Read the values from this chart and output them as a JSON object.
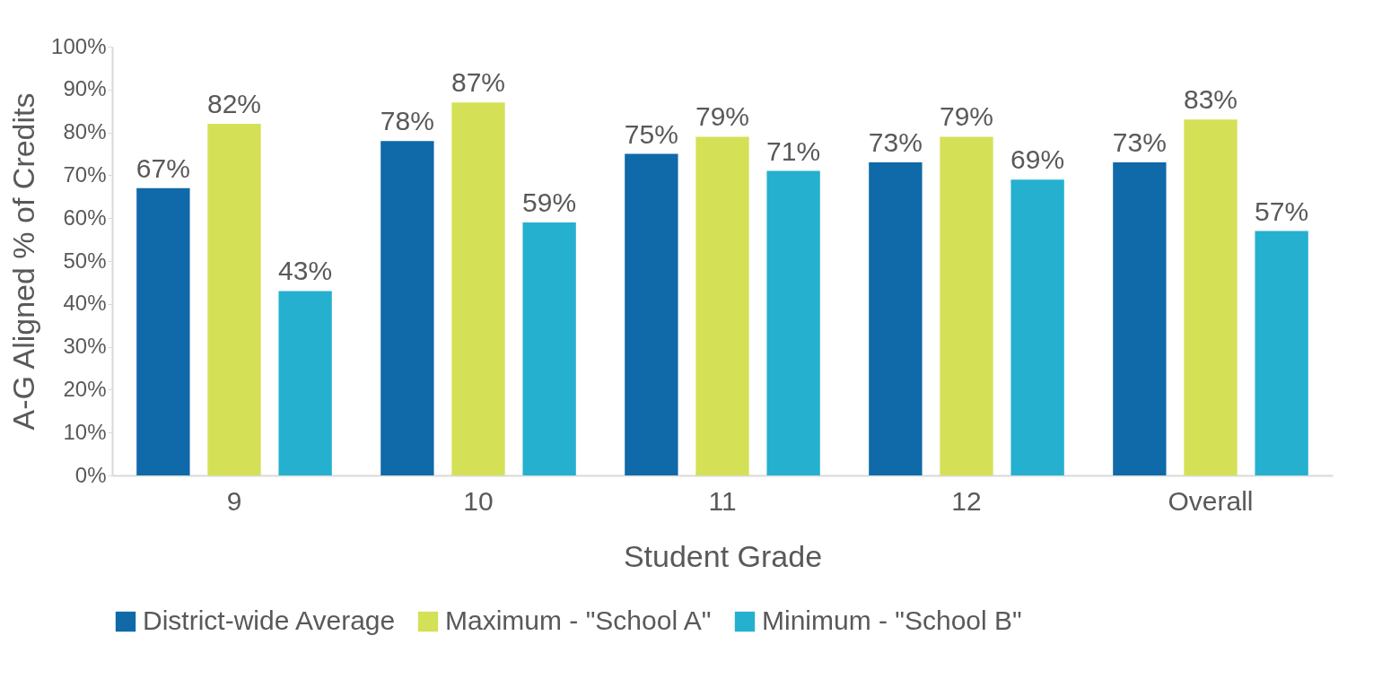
{
  "chart_data": {
    "type": "bar",
    "xlabel": "Student Grade",
    "ylabel": "A-G Aligned % of Credits",
    "categories": [
      "9",
      "10",
      "11",
      "12",
      "Overall"
    ],
    "series": [
      {
        "name": "District-wide Average",
        "color": "#1069a8",
        "values": [
          67,
          78,
          75,
          73,
          73
        ],
        "value_labels": [
          "67%",
          "78%",
          "75%",
          "73%",
          "73%"
        ]
      },
      {
        "name": "Maximum - \"School A\"",
        "color": "#d4e157",
        "values": [
          82,
          87,
          79,
          79,
          83
        ],
        "value_labels": [
          "82%",
          "87%",
          "79%",
          "79%",
          "83%"
        ]
      },
      {
        "name": "Minimum - \"School B\"",
        "color": "#25b0cf",
        "values": [
          43,
          59,
          71,
          69,
          57
        ],
        "value_labels": [
          "43%",
          "59%",
          "71%",
          "69%",
          "57%"
        ]
      }
    ],
    "ylim": [
      0,
      100
    ],
    "yticks": [
      {
        "value": 0,
        "label": "0%"
      },
      {
        "value": 10,
        "label": "10%"
      },
      {
        "value": 20,
        "label": "20%"
      },
      {
        "value": 30,
        "label": "30%"
      },
      {
        "value": 40,
        "label": "40%"
      },
      {
        "value": 50,
        "label": "50%"
      },
      {
        "value": 60,
        "label": "60%"
      },
      {
        "value": 70,
        "label": "70%"
      },
      {
        "value": 80,
        "label": "80%"
      },
      {
        "value": 90,
        "label": "90%"
      },
      {
        "value": 100,
        "label": "100%"
      }
    ],
    "grid": false,
    "legend": "bottom"
  }
}
